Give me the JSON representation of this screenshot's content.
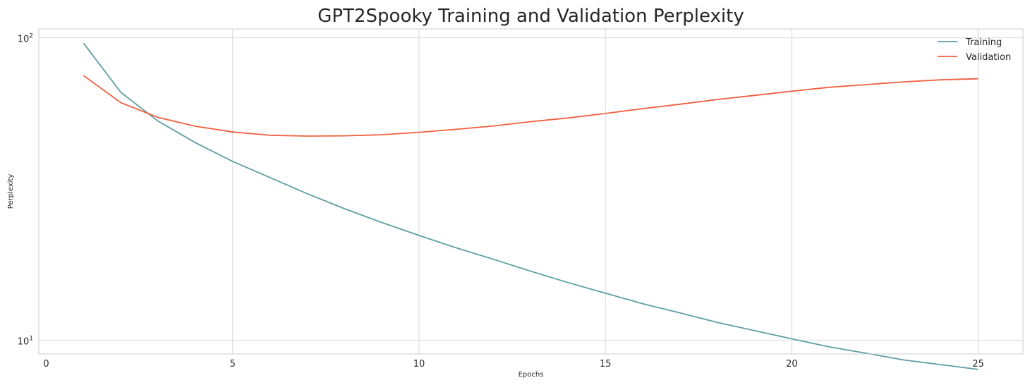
{
  "chart_data": {
    "type": "line",
    "title": "GPT2Spooky Training and Validation Perplexity",
    "xlabel": "Epochs",
    "ylabel": "Perplexity",
    "yscale": "log",
    "xlim": [
      -0.2,
      26.2
    ],
    "ylim": [
      9.0,
      107
    ],
    "grid": true,
    "legend_position": "top-right",
    "x_ticks": [
      0,
      5,
      10,
      15,
      20,
      25
    ],
    "y_ticks": [
      {
        "base": "10",
        "exp": "1",
        "value": 10
      },
      {
        "base": "10",
        "exp": "2",
        "value": 100
      }
    ],
    "x": [
      1,
      2,
      3,
      4,
      5,
      6,
      7,
      8,
      9,
      10,
      11,
      12,
      13,
      14,
      15,
      16,
      17,
      18,
      19,
      20,
      21,
      22,
      23,
      24,
      25
    ],
    "series": [
      {
        "name": "Training",
        "color": "#5f9ea0",
        "values": [
          96,
          66,
          53,
          45,
          39,
          34.5,
          30.5,
          27.2,
          24.5,
          22.2,
          20.2,
          18.5,
          16.9,
          15.5,
          14.3,
          13.2,
          12.3,
          11.45,
          10.75,
          10.1,
          9.5,
          9.05,
          8.6,
          8.3,
          8.0
        ]
      },
      {
        "name": "Validation",
        "color": "#f05f40",
        "values": [
          75,
          61,
          54.5,
          51,
          48.8,
          47.6,
          47.3,
          47.4,
          47.8,
          48.7,
          49.8,
          51.1,
          52.8,
          54.3,
          56.2,
          58.3,
          60.3,
          62.5,
          64.5,
          66.6,
          68.6,
          70.0,
          71.5,
          72.6,
          73.2
        ]
      }
    ]
  }
}
